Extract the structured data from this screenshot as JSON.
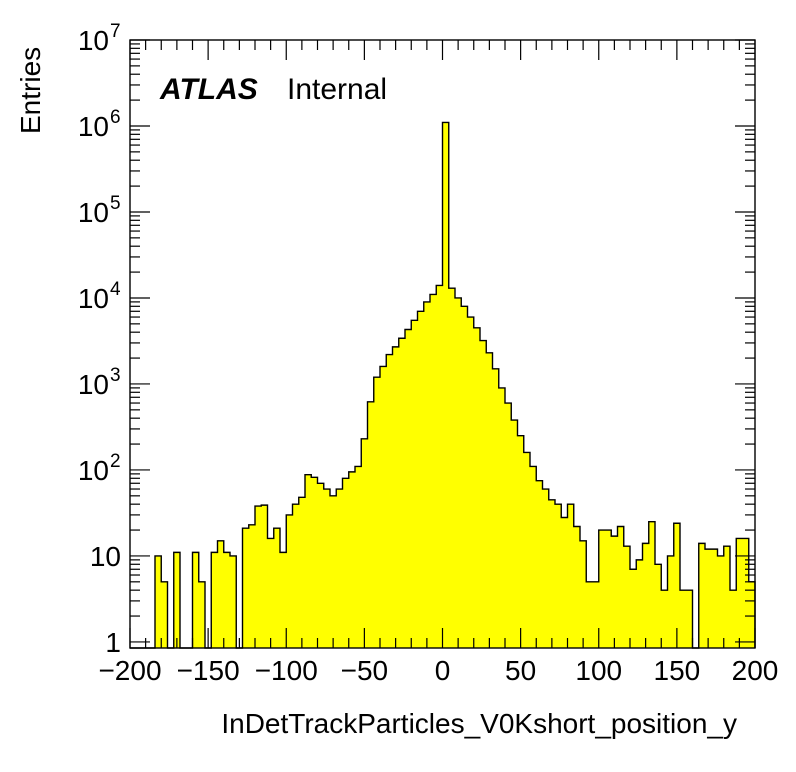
{
  "chart_data": {
    "type": "bar",
    "style": "histogram",
    "xlabel": "InDetTrackParticles_V0Kshort_position_y",
    "ylabel": "Entries",
    "annotation": {
      "bold": "ATLAS",
      "normal": "Internal"
    },
    "xlim": [
      -200,
      200
    ],
    "ylim": [
      0.85,
      10000000
    ],
    "yscale": "log",
    "bin_width": 4,
    "x_ticks": [
      {
        "v": -200,
        "label": "−200"
      },
      {
        "v": -150,
        "label": "−150"
      },
      {
        "v": -100,
        "label": "−100"
      },
      {
        "v": -50,
        "label": "−50"
      },
      {
        "v": 0,
        "label": "0"
      },
      {
        "v": 50,
        "label": "50"
      },
      {
        "v": 100,
        "label": "100"
      },
      {
        "v": 150,
        "label": "150"
      },
      {
        "v": 200,
        "label": "200"
      }
    ],
    "y_ticks": [
      {
        "v": 1,
        "base": "1",
        "exp": ""
      },
      {
        "v": 10,
        "base": "10",
        "exp": ""
      },
      {
        "v": 100,
        "base": "10",
        "exp": "2"
      },
      {
        "v": 1000,
        "base": "10",
        "exp": "3"
      },
      {
        "v": 10000,
        "base": "10",
        "exp": "4"
      },
      {
        "v": 100000,
        "base": "10",
        "exp": "5"
      },
      {
        "v": 1000000,
        "base": "10",
        "exp": "6"
      },
      {
        "v": 10000000,
        "base": "10",
        "exp": "7"
      }
    ],
    "fill_color": "#ffff00",
    "line_color": "#000000",
    "bins": [
      {
        "x": -200,
        "y": 0
      },
      {
        "x": -196,
        "y": 0
      },
      {
        "x": -192,
        "y": 0
      },
      {
        "x": -188,
        "y": 0
      },
      {
        "x": -184,
        "y": 10
      },
      {
        "x": -180,
        "y": 5
      },
      {
        "x": -176,
        "y": 0
      },
      {
        "x": -172,
        "y": 11
      },
      {
        "x": -168,
        "y": 0
      },
      {
        "x": -164,
        "y": 0
      },
      {
        "x": -160,
        "y": 11
      },
      {
        "x": -156,
        "y": 5
      },
      {
        "x": -152,
        "y": 0
      },
      {
        "x": -148,
        "y": 11
      },
      {
        "x": -144,
        "y": 15
      },
      {
        "x": -140,
        "y": 11
      },
      {
        "x": -136,
        "y": 10
      },
      {
        "x": -132,
        "y": 0
      },
      {
        "x": -128,
        "y": 21
      },
      {
        "x": -124,
        "y": 23
      },
      {
        "x": -120,
        "y": 38
      },
      {
        "x": -116,
        "y": 39
      },
      {
        "x": -112,
        "y": 16
      },
      {
        "x": -108,
        "y": 21
      },
      {
        "x": -104,
        "y": 11
      },
      {
        "x": -100,
        "y": 30
      },
      {
        "x": -96,
        "y": 40
      },
      {
        "x": -92,
        "y": 48
      },
      {
        "x": -88,
        "y": 88
      },
      {
        "x": -84,
        "y": 82
      },
      {
        "x": -80,
        "y": 70
      },
      {
        "x": -76,
        "y": 60
      },
      {
        "x": -72,
        "y": 50
      },
      {
        "x": -68,
        "y": 60
      },
      {
        "x": -64,
        "y": 80
      },
      {
        "x": -60,
        "y": 95
      },
      {
        "x": -56,
        "y": 110
      },
      {
        "x": -52,
        "y": 230
      },
      {
        "x": -48,
        "y": 620
      },
      {
        "x": -44,
        "y": 1200
      },
      {
        "x": -40,
        "y": 1600
      },
      {
        "x": -36,
        "y": 2200
      },
      {
        "x": -32,
        "y": 2700
      },
      {
        "x": -28,
        "y": 3400
      },
      {
        "x": -24,
        "y": 4300
      },
      {
        "x": -20,
        "y": 5500
      },
      {
        "x": -16,
        "y": 7000
      },
      {
        "x": -12,
        "y": 9000
      },
      {
        "x": -8,
        "y": 11000
      },
      {
        "x": -4,
        "y": 14000
      },
      {
        "x": 0,
        "y": 1100000
      },
      {
        "x": 4,
        "y": 13000
      },
      {
        "x": 8,
        "y": 10000
      },
      {
        "x": 12,
        "y": 8000
      },
      {
        "x": 16,
        "y": 6000
      },
      {
        "x": 20,
        "y": 4500
      },
      {
        "x": 24,
        "y": 3200
      },
      {
        "x": 28,
        "y": 2300
      },
      {
        "x": 32,
        "y": 1500
      },
      {
        "x": 36,
        "y": 900
      },
      {
        "x": 40,
        "y": 600
      },
      {
        "x": 44,
        "y": 380
      },
      {
        "x": 48,
        "y": 250
      },
      {
        "x": 52,
        "y": 160
      },
      {
        "x": 56,
        "y": 110
      },
      {
        "x": 60,
        "y": 75
      },
      {
        "x": 64,
        "y": 60
      },
      {
        "x": 68,
        "y": 45
      },
      {
        "x": 72,
        "y": 40
      },
      {
        "x": 76,
        "y": 28
      },
      {
        "x": 80,
        "y": 40
      },
      {
        "x": 84,
        "y": 22
      },
      {
        "x": 88,
        "y": 15
      },
      {
        "x": 92,
        "y": 5
      },
      {
        "x": 96,
        "y": 5
      },
      {
        "x": 100,
        "y": 20
      },
      {
        "x": 104,
        "y": 20
      },
      {
        "x": 108,
        "y": 17
      },
      {
        "x": 112,
        "y": 22
      },
      {
        "x": 116,
        "y": 13
      },
      {
        "x": 120,
        "y": 7
      },
      {
        "x": 124,
        "y": 9
      },
      {
        "x": 128,
        "y": 14
      },
      {
        "x": 132,
        "y": 25
      },
      {
        "x": 136,
        "y": 8
      },
      {
        "x": 140,
        "y": 4
      },
      {
        "x": 144,
        "y": 10
      },
      {
        "x": 148,
        "y": 24
      },
      {
        "x": 152,
        "y": 4
      },
      {
        "x": 156,
        "y": 4
      },
      {
        "x": 160,
        "y": 0
      },
      {
        "x": 164,
        "y": 14
      },
      {
        "x": 168,
        "y": 12
      },
      {
        "x": 172,
        "y": 12
      },
      {
        "x": 176,
        "y": 10
      },
      {
        "x": 180,
        "y": 13
      },
      {
        "x": 184,
        "y": 4
      },
      {
        "x": 188,
        "y": 16
      },
      {
        "x": 192,
        "y": 16
      },
      {
        "x": 196,
        "y": 5
      }
    ]
  }
}
